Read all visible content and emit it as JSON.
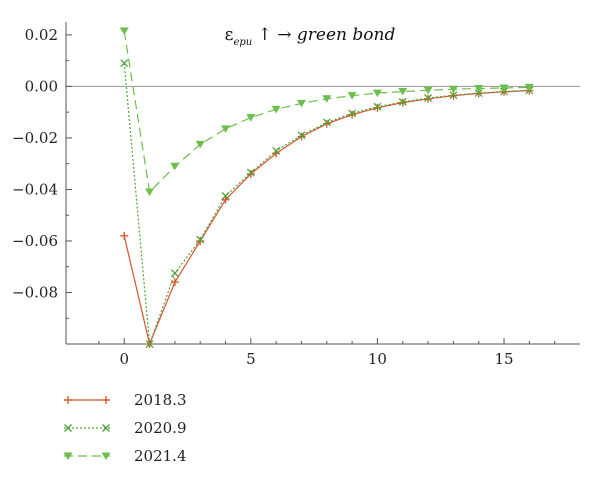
{
  "chart_data": {
    "type": "line",
    "title": {
      "symbol": "ε",
      "subscript": "epu",
      "suffix": " ↑ → ",
      "italic": "green bond"
    },
    "xlabel": "",
    "ylabel": "",
    "xlim": [
      -2.3,
      18
    ],
    "ylim": [
      -0.1,
      0.025
    ],
    "xticks": [
      0,
      5,
      10,
      15
    ],
    "yticks": [
      0.02,
      0.0,
      -0.02,
      -0.04,
      -0.06,
      -0.08
    ],
    "ytick_labels": [
      "0.02",
      "0.00",
      "−0.02",
      "−0.04",
      "−0.06",
      "−0.08"
    ],
    "zero_line": true,
    "grid": false,
    "legend_position": "bottom-left",
    "x": [
      0,
      1,
      2,
      3,
      4,
      5,
      6,
      7,
      8,
      9,
      10,
      11,
      12,
      13,
      14,
      15,
      16
    ],
    "series": [
      {
        "name": "2018.3",
        "color": "#d9532c",
        "marker": "plus",
        "dash": "solid",
        "values": [
          -0.058,
          -0.1,
          -0.076,
          -0.06,
          -0.044,
          -0.034,
          -0.026,
          -0.0195,
          -0.0145,
          -0.011,
          -0.0083,
          -0.0063,
          -0.0048,
          -0.0036,
          -0.0027,
          -0.0021,
          -0.0016
        ]
      },
      {
        "name": "2020.9",
        "color": "#4fa33b",
        "marker": "x",
        "dash": "dotted",
        "values": [
          0.009,
          -0.1,
          -0.0725,
          -0.0595,
          -0.0425,
          -0.0335,
          -0.025,
          -0.019,
          -0.014,
          -0.0105,
          -0.0079,
          -0.006,
          -0.0045,
          -0.0034,
          -0.0026,
          -0.002,
          -0.0015
        ]
      },
      {
        "name": "2021.4",
        "color": "#6cbf4a",
        "marker": "triangle-down",
        "dash": "dashed",
        "values": [
          0.0215,
          -0.041,
          -0.031,
          -0.0225,
          -0.0165,
          -0.0121,
          -0.0089,
          -0.0066,
          -0.0048,
          -0.0036,
          -0.0026,
          -0.002,
          -0.0015,
          -0.0011,
          -0.0008,
          -0.0006,
          -0.0004
        ]
      }
    ]
  }
}
